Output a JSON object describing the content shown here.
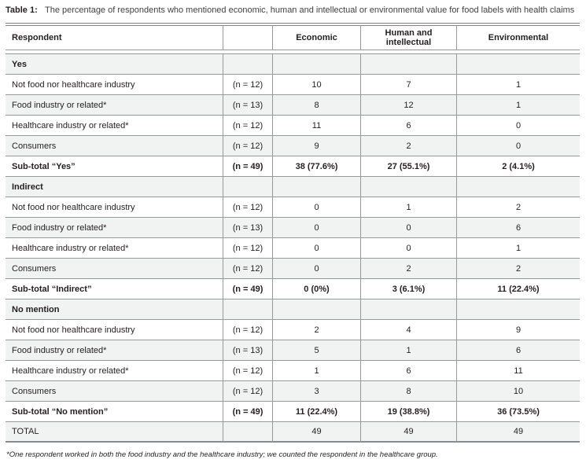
{
  "caption": {
    "label": "Table 1:",
    "text": "The percentage of respondents who mentioned economic, human and intellectual or environmental value for food labels with health claims"
  },
  "table": {
    "columns": [
      "Respondent",
      "",
      "Economic",
      "Human and intellectual",
      "Environmental"
    ],
    "rows": [
      {
        "type": "section",
        "label": "Yes",
        "n": "",
        "economic": "",
        "human": "",
        "environmental": ""
      },
      {
        "type": "data",
        "label": "Not food nor healthcare industry",
        "n": "(n = 12)",
        "economic": "10",
        "human": "7",
        "environmental": "1"
      },
      {
        "type": "data",
        "label": "Food industry or related*",
        "n": "(n = 13)",
        "economic": "8",
        "human": "12",
        "environmental": "1"
      },
      {
        "type": "data",
        "label": "Healthcare industry or related*",
        "n": "(n = 12)",
        "economic": "11",
        "human": "6",
        "environmental": "0"
      },
      {
        "type": "data",
        "label": "Consumers",
        "n": "(n = 12)",
        "economic": "9",
        "human": "2",
        "environmental": "0"
      },
      {
        "type": "subtotal",
        "label": "Sub-total “Yes”",
        "n": "(n = 49)",
        "economic": "38 (77.6%)",
        "human": "27 (55.1%)",
        "environmental": "2 (4.1%)"
      },
      {
        "type": "section",
        "label": "Indirect",
        "n": "",
        "economic": "",
        "human": "",
        "environmental": ""
      },
      {
        "type": "data",
        "label": "Not food nor healthcare industry",
        "n": "(n = 12)",
        "economic": "0",
        "human": "1",
        "environmental": "2"
      },
      {
        "type": "data",
        "label": "Food industry or related*",
        "n": "(n = 13)",
        "economic": "0",
        "human": "0",
        "environmental": "6"
      },
      {
        "type": "data",
        "label": "Healthcare industry or related*",
        "n": "(n = 12)",
        "economic": "0",
        "human": "0",
        "environmental": "1"
      },
      {
        "type": "data",
        "label": "Consumers",
        "n": "(n = 12)",
        "economic": "0",
        "human": "2",
        "environmental": "2"
      },
      {
        "type": "subtotal",
        "label": "Sub-total “Indirect”",
        "n": "(n = 49)",
        "economic": "0 (0%)",
        "human": "3 (6.1%)",
        "environmental": "11 (22.4%)"
      },
      {
        "type": "section",
        "label": "No mention",
        "n": "",
        "economic": "",
        "human": "",
        "environmental": ""
      },
      {
        "type": "data",
        "label": "Not food nor healthcare industry",
        "n": "(n = 12)",
        "economic": "2",
        "human": "4",
        "environmental": "9"
      },
      {
        "type": "data",
        "label": "Food industry or related*",
        "n": "(n = 13)",
        "economic": "5",
        "human": "1",
        "environmental": "6"
      },
      {
        "type": "data",
        "label": "Healthcare industry or related*",
        "n": "(n = 12)",
        "economic": "1",
        "human": "6",
        "environmental": "11"
      },
      {
        "type": "data",
        "label": "Consumers",
        "n": "(n = 12)",
        "economic": "3",
        "human": "8",
        "environmental": "10"
      },
      {
        "type": "subtotal",
        "label": "Sub-total “No mention”",
        "n": "(n = 49)",
        "economic": "11 (22.4%)",
        "human": "19 (38.8%)",
        "environmental": "36 (73.5%)"
      },
      {
        "type": "total",
        "label": "TOTAL",
        "n": "",
        "economic": "49",
        "human": "49",
        "environmental": "49"
      }
    ]
  },
  "footnote": "*One respondent worked in both the food industry and the healthcare industry; we counted the respondent in the healthcare group.",
  "colors": {
    "row_shade": "#f1f2f2",
    "grid_line": "#97999c",
    "rule_line": "#808285",
    "text": "#231f20"
  }
}
